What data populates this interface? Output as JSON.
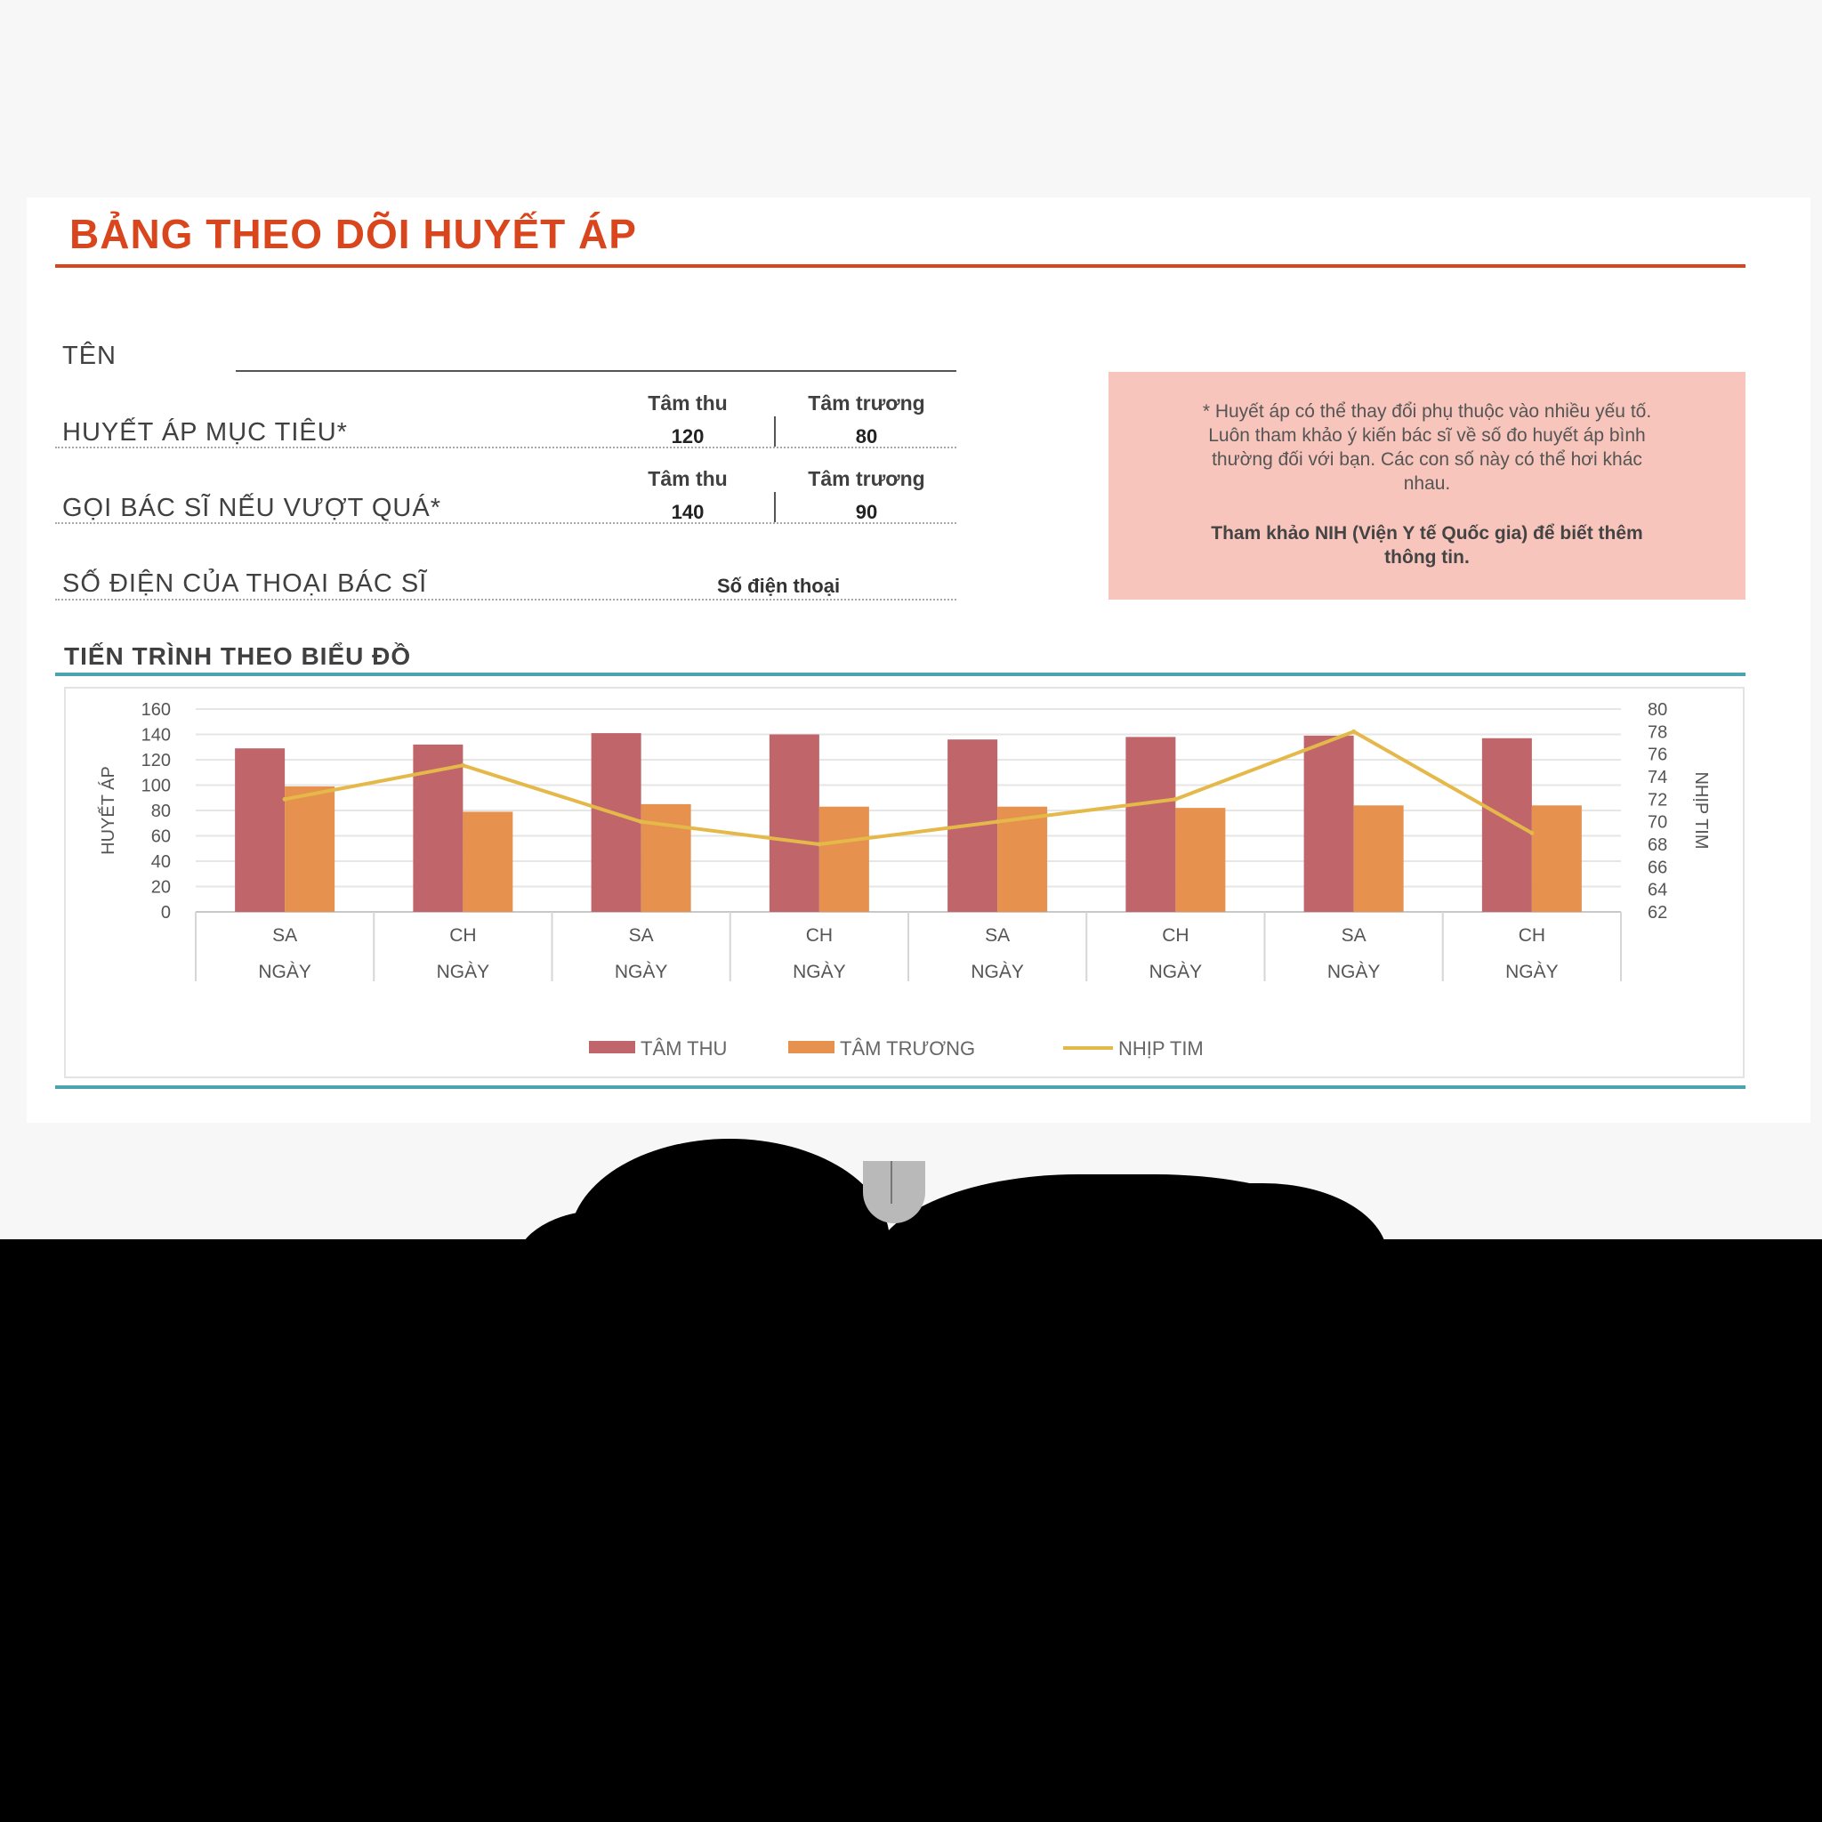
{
  "title": "BẢNG THEO DÕI HUYẾT ÁP",
  "form": {
    "name_label": "TÊN",
    "target_label": "HUYẾT ÁP MỤC TIÊU*",
    "call_label": "GỌI BÁC SĨ NẾU VƯỢT QUÁ*",
    "phone_label": "SỐ ĐIỆN CỦA THOẠI BÁC SĨ",
    "systolic_header": "Tâm thu",
    "diastolic_header": "Tâm trương",
    "target_systolic": "120",
    "target_diastolic": "80",
    "call_systolic": "140",
    "call_diastolic": "90",
    "phone_value": "Số điện thoại"
  },
  "note": {
    "text1": "* Huyết áp có thể thay đổi phụ thuộc vào nhiều yếu tố.",
    "text2": "Luôn tham khảo ý kiến bác sĩ về số đo huyết áp bình",
    "text3": "thường đối với bạn. Các con số này có thể hơi khác",
    "text4": "nhau.",
    "bold1": "Tham khảo NIH (Viện Y tế Quốc gia) để biết thêm",
    "bold2": "thông tin."
  },
  "chart_title": "TIẾN TRÌNH THEO BIỂU ĐỒ",
  "colors": {
    "systolic": "#c0666b",
    "diastolic": "#e6914d",
    "heart_rate": "#e5b84a",
    "title": "#d9461e",
    "rule": "#4aa3ad"
  },
  "chart_data": {
    "type": "bar",
    "categories": [
      {
        "top": "SA",
        "bottom": "NGÀY"
      },
      {
        "top": "CH",
        "bottom": "NGÀY"
      },
      {
        "top": "SA",
        "bottom": "NGÀY"
      },
      {
        "top": "CH",
        "bottom": "NGÀY"
      },
      {
        "top": "SA",
        "bottom": "NGÀY"
      },
      {
        "top": "CH",
        "bottom": "NGÀY"
      },
      {
        "top": "SA",
        "bottom": "NGÀY"
      },
      {
        "top": "CH",
        "bottom": "NGÀY"
      }
    ],
    "series": [
      {
        "name": "TÂM THU",
        "kind": "bar",
        "axis": "left",
        "values": [
          129,
          132,
          141,
          140,
          136,
          138,
          139,
          137
        ]
      },
      {
        "name": "TÂM TRƯƠNG",
        "kind": "bar",
        "axis": "left",
        "values": [
          99,
          79,
          85,
          83,
          83,
          82,
          84,
          84
        ]
      },
      {
        "name": "NHỊP TIM",
        "kind": "line",
        "axis": "right",
        "values": [
          72,
          75,
          70,
          68,
          70,
          72,
          78,
          69
        ]
      }
    ],
    "ylabel": "HUYẾT ÁP",
    "y2label": "NHỊP TIM",
    "ylim": [
      0,
      160
    ],
    "y2lim": [
      62,
      80
    ],
    "yticks": [
      0,
      20,
      40,
      60,
      80,
      100,
      120,
      140,
      160
    ],
    "y2ticks": [
      62,
      64,
      66,
      68,
      70,
      72,
      74,
      76,
      78,
      80
    ],
    "grid": true,
    "legend": "bottom"
  }
}
